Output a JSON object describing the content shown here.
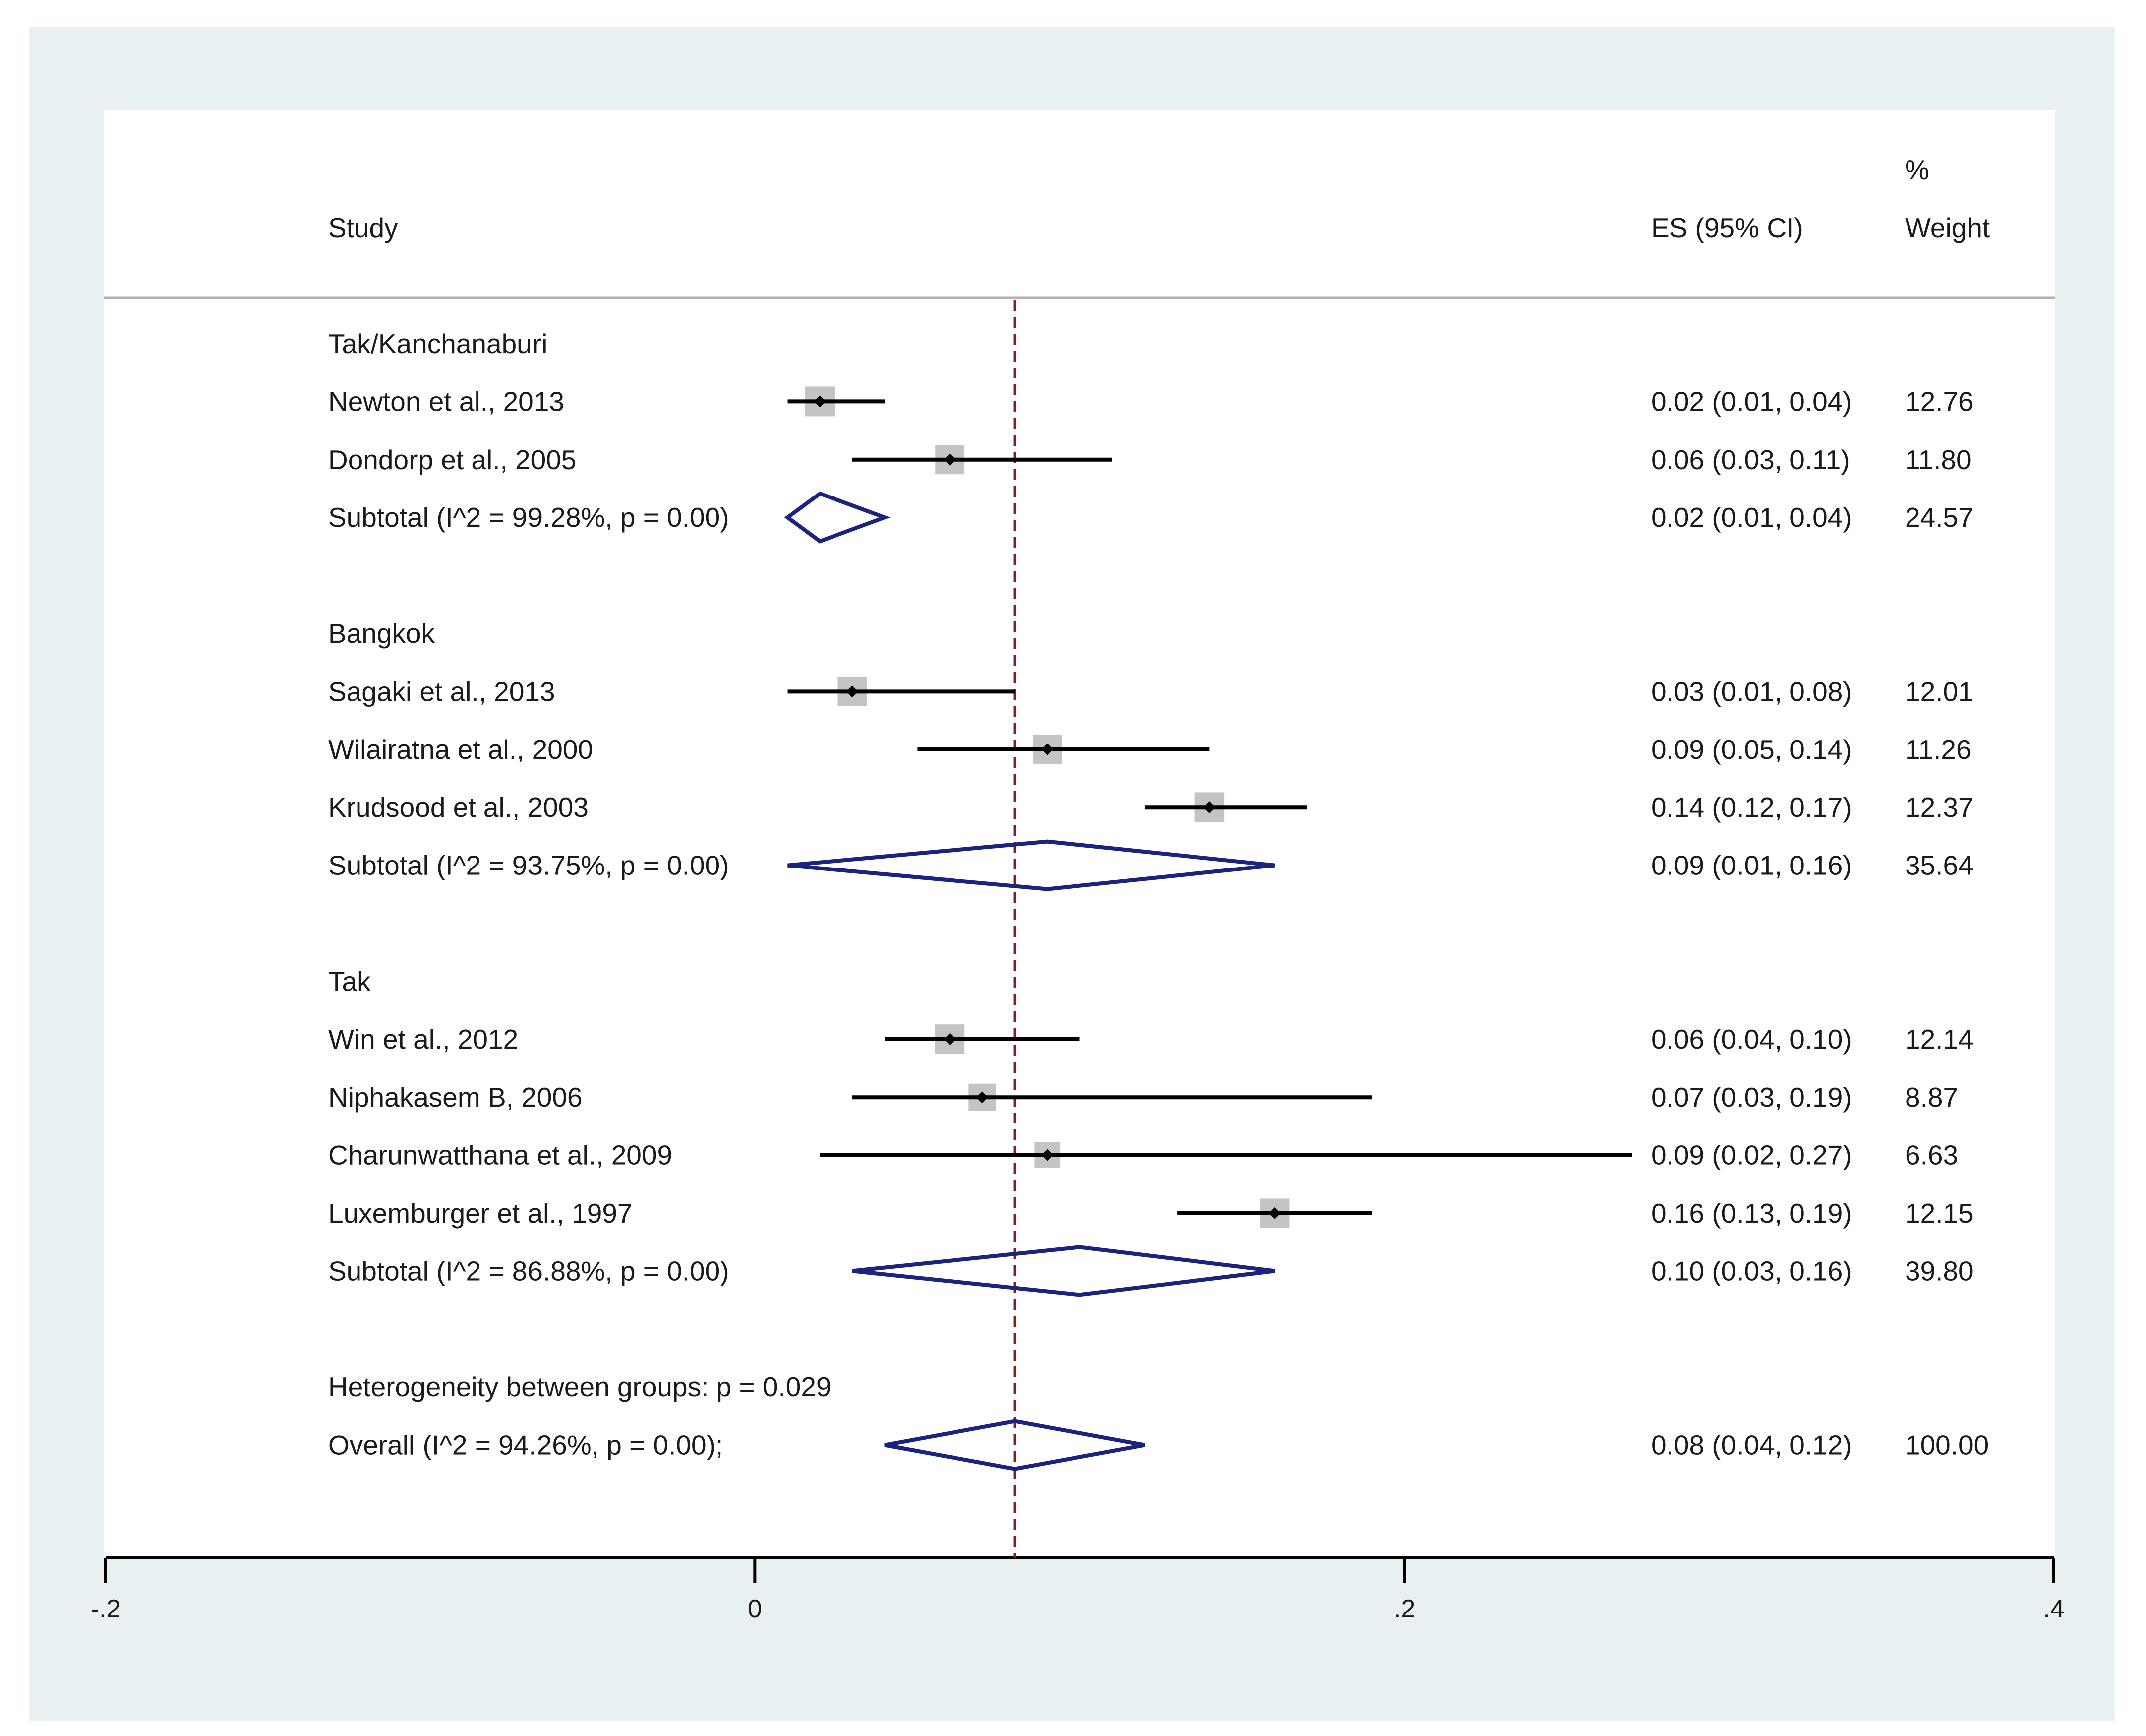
{
  "chart_data": {
    "type": "forest",
    "colors": {
      "outer_background": "#e8f0f1",
      "inner_background": "#ffffff",
      "ci_line": "#000000",
      "weight_box": "#c4c4c4",
      "diamond": "#1a237e",
      "reference_line": "#8b1a1a",
      "header_rule": "#b0b0b0"
    },
    "headers": {
      "study": "Study",
      "es": "ES (95% CI)",
      "weight_top": "%",
      "weight_bottom": "Weight"
    },
    "x_axis": {
      "range": [
        -0.2,
        0.4
      ],
      "ticks": [
        -0.2,
        0,
        0.2,
        0.4
      ],
      "tick_labels": [
        "-.2",
        "0",
        ".2",
        ".4"
      ]
    },
    "overall_line": 0.08,
    "rows": [
      {
        "kind": "group",
        "label": "Tak/Kanchanaburi"
      },
      {
        "kind": "study",
        "label": "Newton et al., 2013",
        "es": 0.02,
        "lo": 0.01,
        "hi": 0.04,
        "es_text": "0.02 (0.01, 0.04)",
        "weight": 12.76,
        "weight_text": "12.76"
      },
      {
        "kind": "study",
        "label": "Dondorp et al., 2005",
        "es": 0.06,
        "lo": 0.03,
        "hi": 0.11,
        "es_text": "0.06 (0.03, 0.11)",
        "weight": 11.8,
        "weight_text": "11.80"
      },
      {
        "kind": "subtotal",
        "label": "Subtotal  (I^2 = 99.28%, p = 0.00)",
        "es": 0.02,
        "lo": 0.01,
        "hi": 0.04,
        "es_text": "0.02 (0.01, 0.04)",
        "weight_text": "24.57"
      },
      {
        "kind": "blank"
      },
      {
        "kind": "group",
        "label": "Bangkok"
      },
      {
        "kind": "study",
        "label": "Sagaki et al., 2013",
        "es": 0.03,
        "lo": 0.01,
        "hi": 0.08,
        "es_text": "0.03 (0.01, 0.08)",
        "weight": 12.01,
        "weight_text": "12.01"
      },
      {
        "kind": "study",
        "label": "Wilairatna et al., 2000",
        "es": 0.09,
        "lo": 0.05,
        "hi": 0.14,
        "es_text": "0.09 (0.05, 0.14)",
        "weight": 11.26,
        "weight_text": "11.26"
      },
      {
        "kind": "study",
        "label": "Krudsood et al., 2003",
        "es": 0.14,
        "lo": 0.12,
        "hi": 0.17,
        "es_text": "0.14 (0.12, 0.17)",
        "weight": 12.37,
        "weight_text": "12.37"
      },
      {
        "kind": "subtotal",
        "label": "Subtotal  (I^2 = 93.75%, p = 0.00)",
        "es": 0.09,
        "lo": 0.01,
        "hi": 0.16,
        "es_text": "0.09 (0.01, 0.16)",
        "weight_text": "35.64"
      },
      {
        "kind": "blank"
      },
      {
        "kind": "group",
        "label": "Tak"
      },
      {
        "kind": "study",
        "label": "Win et al., 2012",
        "es": 0.06,
        "lo": 0.04,
        "hi": 0.1,
        "es_text": "0.06 (0.04, 0.10)",
        "weight": 12.14,
        "weight_text": "12.14"
      },
      {
        "kind": "study",
        "label": "Niphakasem B, 2006",
        "es": 0.07,
        "lo": 0.03,
        "hi": 0.19,
        "es_text": "0.07 (0.03, 0.19)",
        "weight": 8.87,
        "weight_text": "8.87"
      },
      {
        "kind": "study",
        "label": "Charunwatthana et al., 2009",
        "es": 0.09,
        "lo": 0.02,
        "hi": 0.27,
        "es_text": "0.09 (0.02, 0.27)",
        "weight": 6.63,
        "weight_text": "6.63"
      },
      {
        "kind": "study",
        "label": "Luxemburger et al., 1997",
        "es": 0.16,
        "lo": 0.13,
        "hi": 0.19,
        "es_text": "0.16 (0.13, 0.19)",
        "weight": 12.15,
        "weight_text": "12.15"
      },
      {
        "kind": "subtotal",
        "label": "Subtotal  (I^2 = 86.88%, p = 0.00)",
        "es": 0.1,
        "lo": 0.03,
        "hi": 0.16,
        "es_text": "0.10 (0.03, 0.16)",
        "weight_text": "39.80"
      },
      {
        "kind": "blank"
      },
      {
        "kind": "note",
        "label": "Heterogeneity between groups: p = 0.029"
      },
      {
        "kind": "overall",
        "label": "Overall  (I^2 = 94.26%, p = 0.00);",
        "es": 0.08,
        "lo": 0.04,
        "hi": 0.12,
        "es_text": "0.08 (0.04, 0.12)",
        "weight_text": "100.00"
      }
    ]
  }
}
